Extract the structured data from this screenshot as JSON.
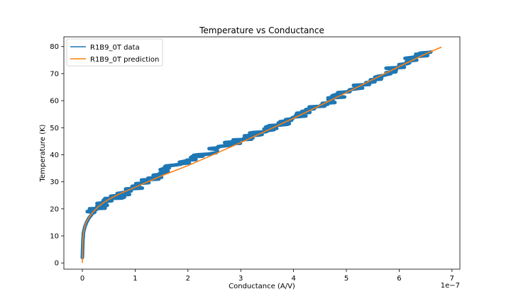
{
  "chart_data": {
    "type": "line",
    "title": "Temperature vs Conductance",
    "xlabel": "Conductance (A/V)",
    "ylabel": "Temperature (K)",
    "x_offset_text": "1e−7",
    "x_scale": 1e-07,
    "xlim": [
      -0.35,
      7.15
    ],
    "ylim": [
      -2.3,
      83.6
    ],
    "x_ticks": [
      0,
      1,
      2,
      3,
      4,
      5,
      6,
      7
    ],
    "x_tick_labels": [
      "0",
      "1",
      "2",
      "3",
      "4",
      "5",
      "6",
      "7"
    ],
    "y_ticks": [
      0,
      10,
      20,
      30,
      40,
      50,
      60,
      70,
      80
    ],
    "y_tick_labels": [
      "0",
      "10",
      "20",
      "30",
      "40",
      "50",
      "60",
      "70",
      "80"
    ],
    "grid": false,
    "legend_position": "top-left",
    "series": [
      {
        "name": "R1B9_0T data",
        "color": "#1f77b4",
        "x": [
          0,
          0.005,
          0.01,
          0.02,
          0.03,
          0.05,
          0.08,
          0.12,
          0.18,
          0.25,
          0.35,
          0.5,
          0.6,
          0.8,
          1.0,
          1.2,
          1.4,
          1.6,
          1.8,
          2.0,
          2.2,
          2.4,
          2.6,
          2.8,
          3.0,
          3.2,
          3.4,
          3.6,
          3.8,
          4.0,
          4.2,
          4.4,
          4.6,
          4.8,
          5.0,
          5.2,
          5.4,
          5.6,
          5.8,
          6.0,
          6.2,
          6.4,
          6.6
        ],
        "y": [
          2,
          5,
          8,
          11,
          12,
          13.5,
          15,
          16.5,
          18,
          19.5,
          21,
          23,
          24,
          26,
          28,
          30,
          32,
          34.5,
          36.5,
          38,
          39.5,
          41,
          42.5,
          44,
          45.5,
          47,
          48.5,
          50,
          51.5,
          53,
          55,
          57,
          59,
          61,
          63,
          65,
          67,
          69,
          71,
          73,
          75,
          77,
          78
        ]
      },
      {
        "name": "R1B9_0T prediction",
        "color": "#ff7f0e",
        "x": [
          0,
          0.002,
          0.005,
          0.01,
          0.02,
          0.04,
          0.07,
          0.1,
          0.15,
          0.2,
          0.3,
          0.4,
          0.5,
          0.7,
          1.0,
          1.5,
          2.0,
          2.5,
          3.0,
          3.5,
          4.0,
          4.5,
          5.0,
          5.5,
          6.0,
          6.5,
          6.8
        ],
        "y": [
          0,
          3,
          6,
          8.5,
          11,
          13,
          14.8,
          16,
          17.5,
          18.8,
          20.8,
          22.3,
          23.5,
          25.5,
          28,
          32.2,
          36,
          40.2,
          44.5,
          49,
          53.5,
          58.2,
          63,
          67.8,
          72.6,
          77.3,
          79.8
        ]
      }
    ]
  }
}
